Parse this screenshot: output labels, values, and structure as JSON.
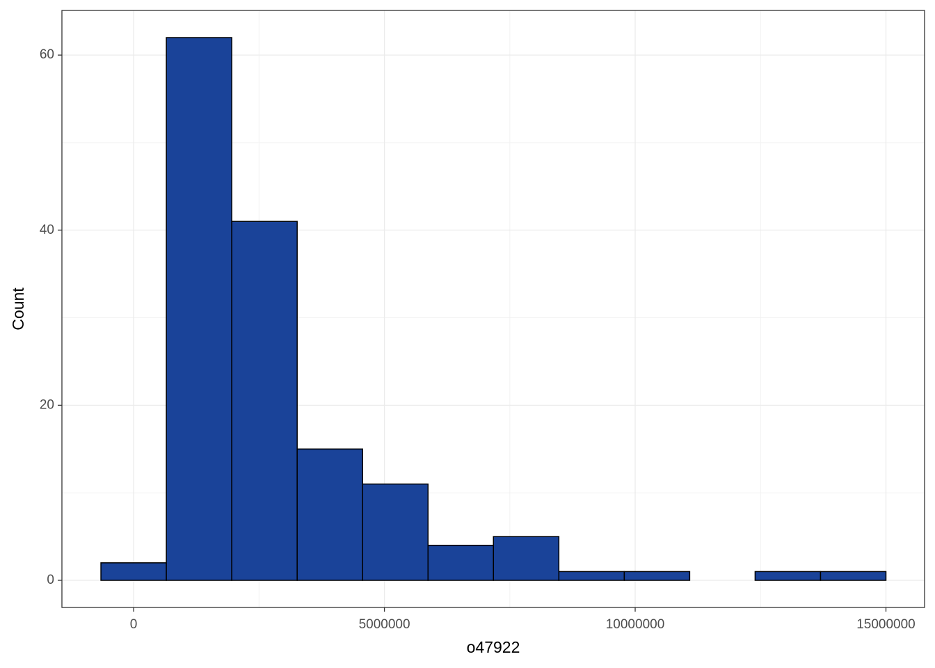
{
  "chart_data": {
    "type": "histogram",
    "x_label": "o47922",
    "y_label": "Count",
    "bins": [
      -652174,
      652174,
      1956522,
      3260870,
      4565217,
      5869565,
      7173913,
      8478261,
      9782609,
      11086957,
      12391304,
      13695652,
      15000000
    ],
    "values": [
      2,
      62,
      41,
      15,
      11,
      4,
      5,
      1,
      1,
      0,
      1,
      1
    ],
    "color": "#1a4399",
    "edge_color": "#000000",
    "xlim": [
      -1430000,
      15770000
    ],
    "ylim": [
      -3.1,
      65.1
    ],
    "xticks": [
      0,
      5000000,
      10000000,
      15000000
    ],
    "yticks": [
      0,
      20,
      40,
      60
    ],
    "x_minor_ticks": [
      2500000,
      7500000,
      12500000
    ],
    "y_minor_ticks": [
      10,
      30,
      50
    ],
    "grid": true
  }
}
